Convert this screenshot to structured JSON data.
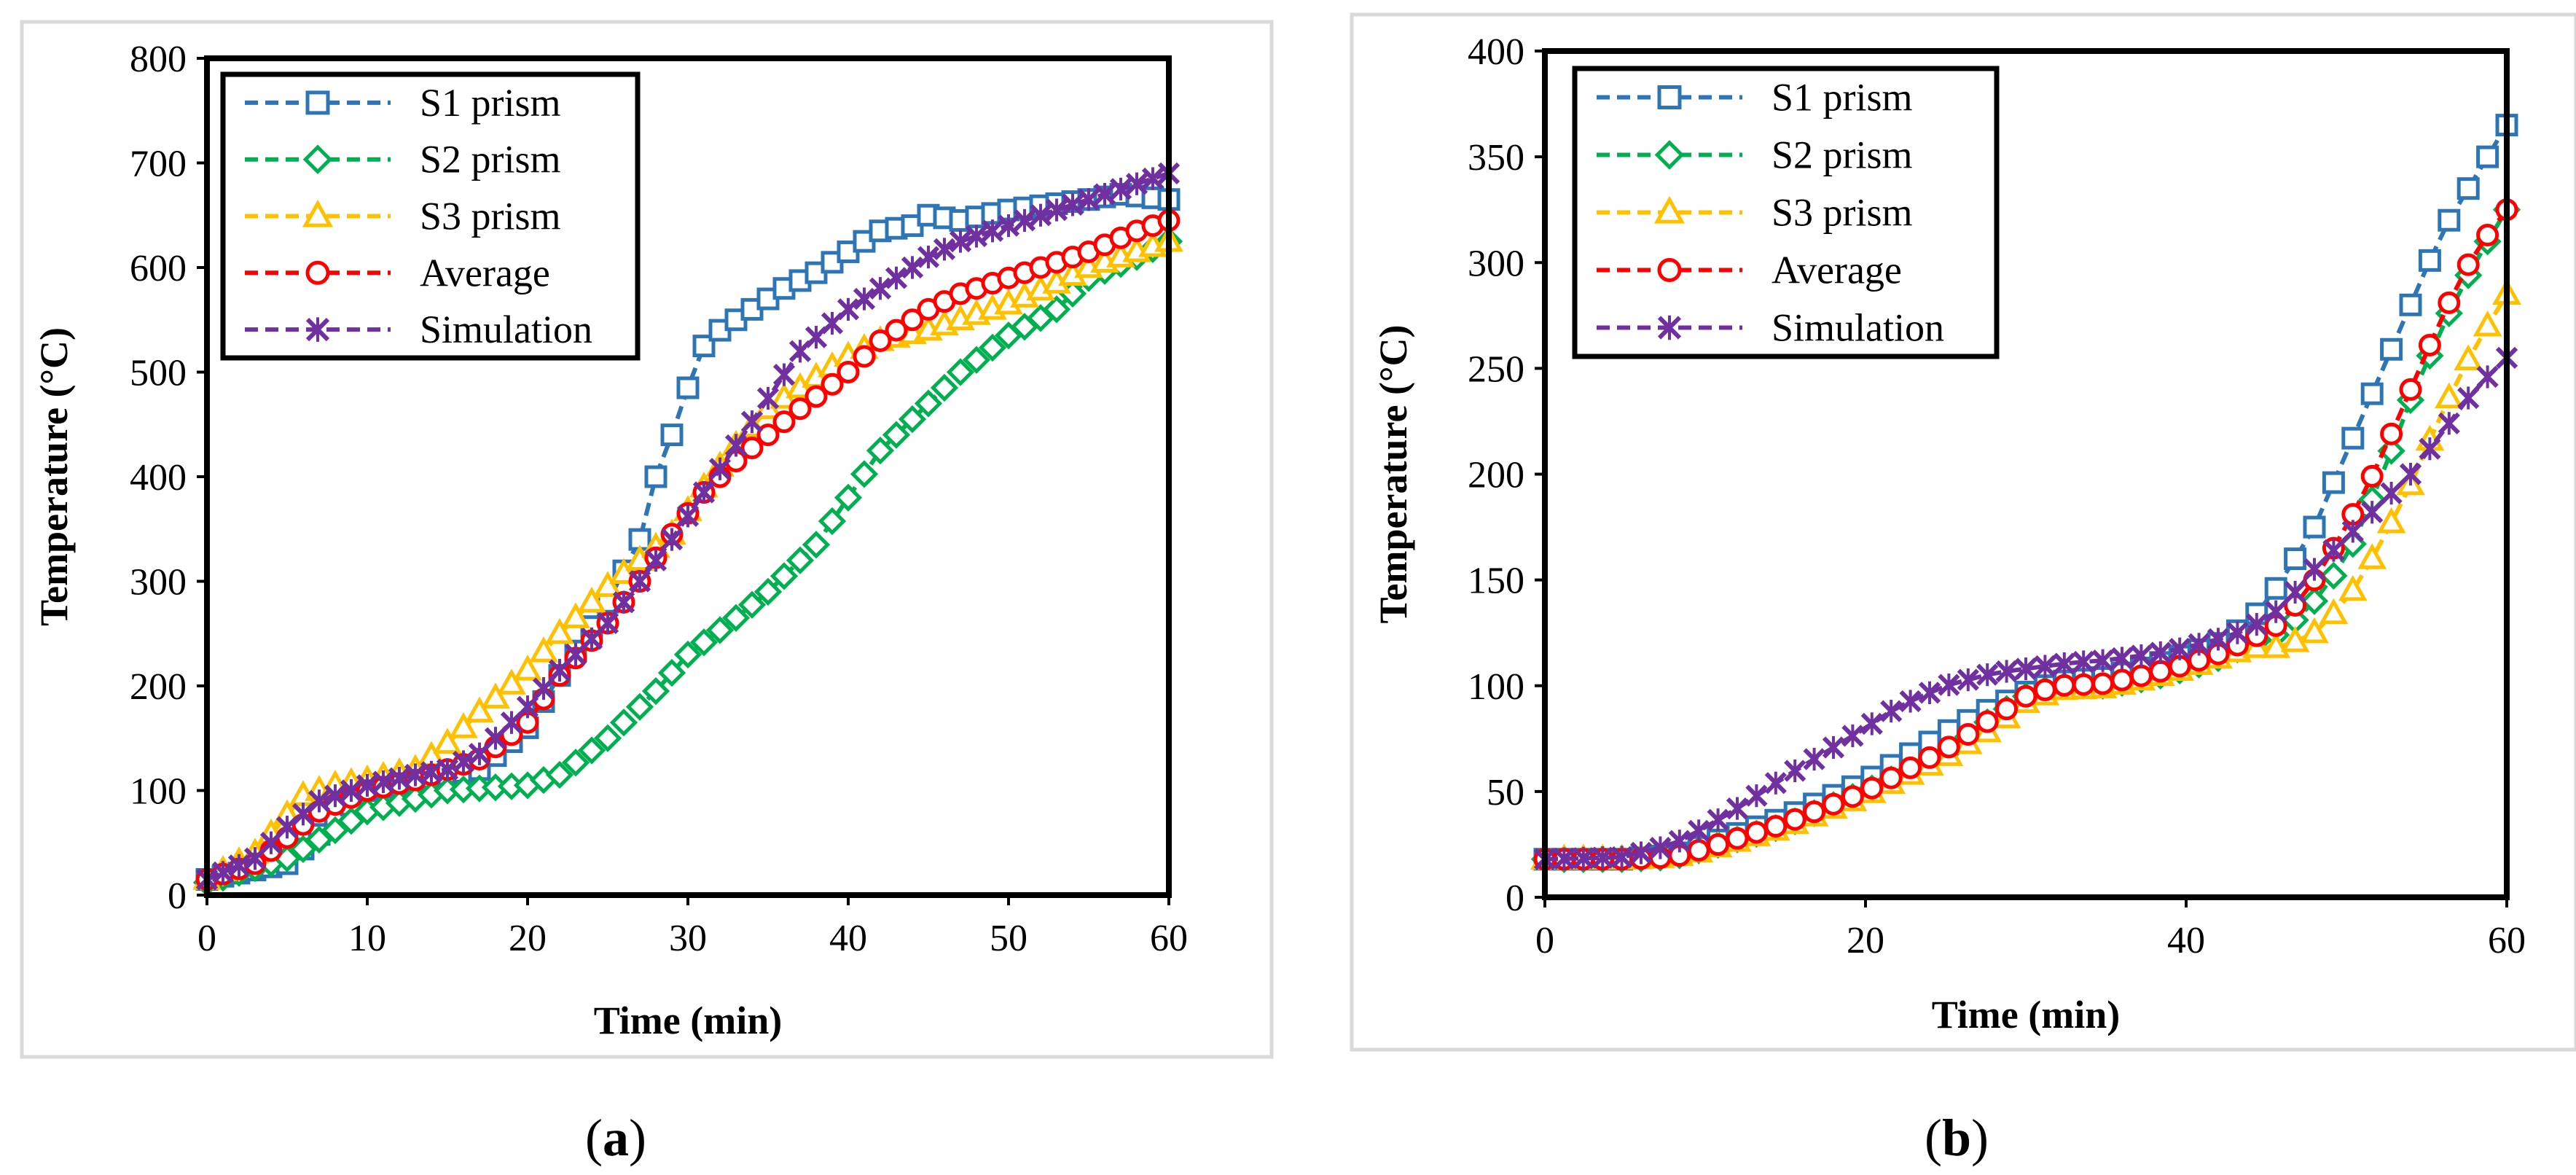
{
  "chart_data": [
    {
      "type": "line",
      "panel_label": "a",
      "xlabel": "Time (min)",
      "ylabel": "Temperature (°C)",
      "xlim": [
        0,
        60
      ],
      "ylim": [
        0,
        800
      ],
      "xticks": [
        0,
        10,
        20,
        30,
        40,
        50,
        60
      ],
      "yticks": [
        0,
        100,
        200,
        300,
        400,
        500,
        600,
        700,
        800
      ],
      "grid": false,
      "legend_position": "top-left",
      "series": [
        {
          "name": "S1 prism",
          "color": "#2E75B6",
          "marker": "square",
          "x": [
            0,
            5,
            10,
            15,
            17,
            20,
            22,
            25,
            27,
            28,
            29,
            30,
            31,
            32,
            35,
            36,
            38,
            40,
            42,
            44,
            45,
            47,
            50,
            55,
            57,
            60
          ],
          "y": [
            15,
            30,
            100,
            115,
            120,
            160,
            210,
            280,
            340,
            400,
            440,
            485,
            525,
            540,
            570,
            580,
            595,
            615,
            635,
            640,
            650,
            645,
            655,
            665,
            670,
            665
          ]
        },
        {
          "name": "S2 prism",
          "color": "#00B050",
          "marker": "diamond",
          "x": [
            0,
            5,
            10,
            15,
            20,
            22,
            25,
            28,
            30,
            33,
            35,
            38,
            40,
            42,
            45,
            47,
            50,
            53,
            55,
            58,
            60
          ],
          "y": [
            12,
            35,
            80,
            100,
            105,
            115,
            150,
            195,
            230,
            265,
            290,
            335,
            380,
            425,
            470,
            500,
            535,
            560,
            590,
            610,
            625
          ]
        },
        {
          "name": "S3 prism",
          "color": "#FFC000",
          "marker": "triangle",
          "x": [
            0,
            3,
            6,
            8,
            10,
            13,
            15,
            17,
            20,
            22,
            25,
            27,
            29,
            31,
            33,
            35,
            38,
            40,
            42,
            45,
            47,
            50,
            53,
            55,
            58,
            60
          ],
          "y": [
            15,
            40,
            95,
            105,
            110,
            120,
            145,
            175,
            215,
            250,
            295,
            320,
            345,
            390,
            430,
            465,
            495,
            515,
            530,
            540,
            550,
            565,
            585,
            600,
            615,
            625
          ]
        },
        {
          "name": "Average",
          "color": "#FF0000",
          "marker": "circle",
          "x": [
            0,
            3,
            5,
            7,
            10,
            13,
            15,
            17,
            20,
            22,
            25,
            27,
            29,
            31,
            33,
            35,
            37,
            40,
            42,
            45,
            47,
            50,
            53,
            55,
            58,
            60
          ],
          "y": [
            15,
            30,
            55,
            80,
            100,
            110,
            120,
            130,
            165,
            210,
            260,
            300,
            345,
            385,
            415,
            440,
            465,
            500,
            530,
            560,
            575,
            590,
            605,
            615,
            635,
            645
          ]
        },
        {
          "name": "Simulation",
          "color": "#7030A0",
          "marker": "x",
          "x": [
            0,
            3,
            5,
            7,
            10,
            13,
            15,
            17,
            20,
            22,
            25,
            27,
            29,
            31,
            33,
            35,
            37,
            40,
            42,
            45,
            47,
            50,
            53,
            55,
            57,
            60
          ],
          "y": [
            15,
            35,
            65,
            90,
            105,
            115,
            120,
            135,
            180,
            215,
            260,
            300,
            340,
            385,
            430,
            475,
            520,
            560,
            580,
            610,
            625,
            640,
            655,
            665,
            675,
            690
          ]
        }
      ]
    },
    {
      "type": "line",
      "panel_label": "b",
      "xlabel": "Time (min)",
      "ylabel": "Temperature (°C)",
      "xlim": [
        0,
        60
      ],
      "ylim": [
        0,
        400
      ],
      "xticks": [
        0,
        20,
        40,
        60
      ],
      "yticks": [
        0,
        50,
        100,
        150,
        200,
        250,
        300,
        350,
        400
      ],
      "grid": false,
      "legend_position": "top-left",
      "series": [
        {
          "name": "S1 prism",
          "color": "#2E75B6",
          "marker": "square",
          "x": [
            0,
            5,
            8,
            10,
            15,
            20,
            25,
            28,
            30,
            32,
            35,
            38,
            40,
            42,
            44,
            46,
            48,
            50,
            52,
            54,
            56,
            58,
            60
          ],
          "y": [
            18,
            18,
            20,
            25,
            38,
            55,
            78,
            90,
            97,
            102,
            104,
            110,
            115,
            120,
            130,
            150,
            175,
            210,
            245,
            280,
            315,
            340,
            365
          ]
        },
        {
          "name": "S2 prism",
          "color": "#00B050",
          "marker": "diamond",
          "x": [
            0,
            5,
            8,
            10,
            15,
            20,
            25,
            28,
            30,
            32,
            35,
            38,
            40,
            42,
            44,
            46,
            48,
            50,
            52,
            54,
            56,
            58,
            60
          ],
          "y": [
            18,
            18,
            19,
            23,
            34,
            50,
            68,
            85,
            95,
            100,
            100,
            104,
            108,
            113,
            120,
            125,
            140,
            160,
            195,
            235,
            270,
            300,
            325
          ]
        },
        {
          "name": "S3 prism",
          "color": "#FFC000",
          "marker": "triangle",
          "x": [
            0,
            5,
            8,
            10,
            15,
            20,
            25,
            28,
            30,
            32,
            35,
            38,
            40,
            42,
            44,
            46,
            48,
            50,
            52,
            54,
            56,
            58,
            60
          ],
          "y": [
            18,
            18,
            19,
            22,
            33,
            48,
            66,
            80,
            92,
            98,
            99,
            104,
            108,
            113,
            118,
            118,
            125,
            140,
            165,
            195,
            230,
            260,
            285
          ]
        },
        {
          "name": "Average",
          "color": "#FF0000",
          "marker": "circle",
          "x": [
            0,
            5,
            8,
            10,
            15,
            20,
            25,
            28,
            30,
            32,
            35,
            38,
            40,
            42,
            44,
            46,
            48,
            50,
            52,
            54,
            56,
            58,
            60
          ],
          "y": [
            18,
            18,
            19,
            23,
            35,
            50,
            70,
            85,
            95,
            100,
            101,
            106,
            110,
            115,
            122,
            130,
            150,
            175,
            205,
            240,
            275,
            305,
            325
          ]
        },
        {
          "name": "Simulation",
          "color": "#7030A0",
          "marker": "x",
          "x": [
            0,
            5,
            8,
            10,
            12,
            15,
            20,
            22,
            25,
            28,
            30,
            33,
            35,
            38,
            40,
            42,
            44,
            46,
            48,
            50,
            52,
            54,
            56,
            58,
            60
          ],
          "y": [
            18,
            19,
            25,
            33,
            42,
            57,
            80,
            90,
            100,
            106,
            108,
            111,
            112,
            115,
            118,
            122,
            127,
            137,
            155,
            170,
            185,
            200,
            220,
            240,
            255
          ]
        }
      ]
    }
  ]
}
